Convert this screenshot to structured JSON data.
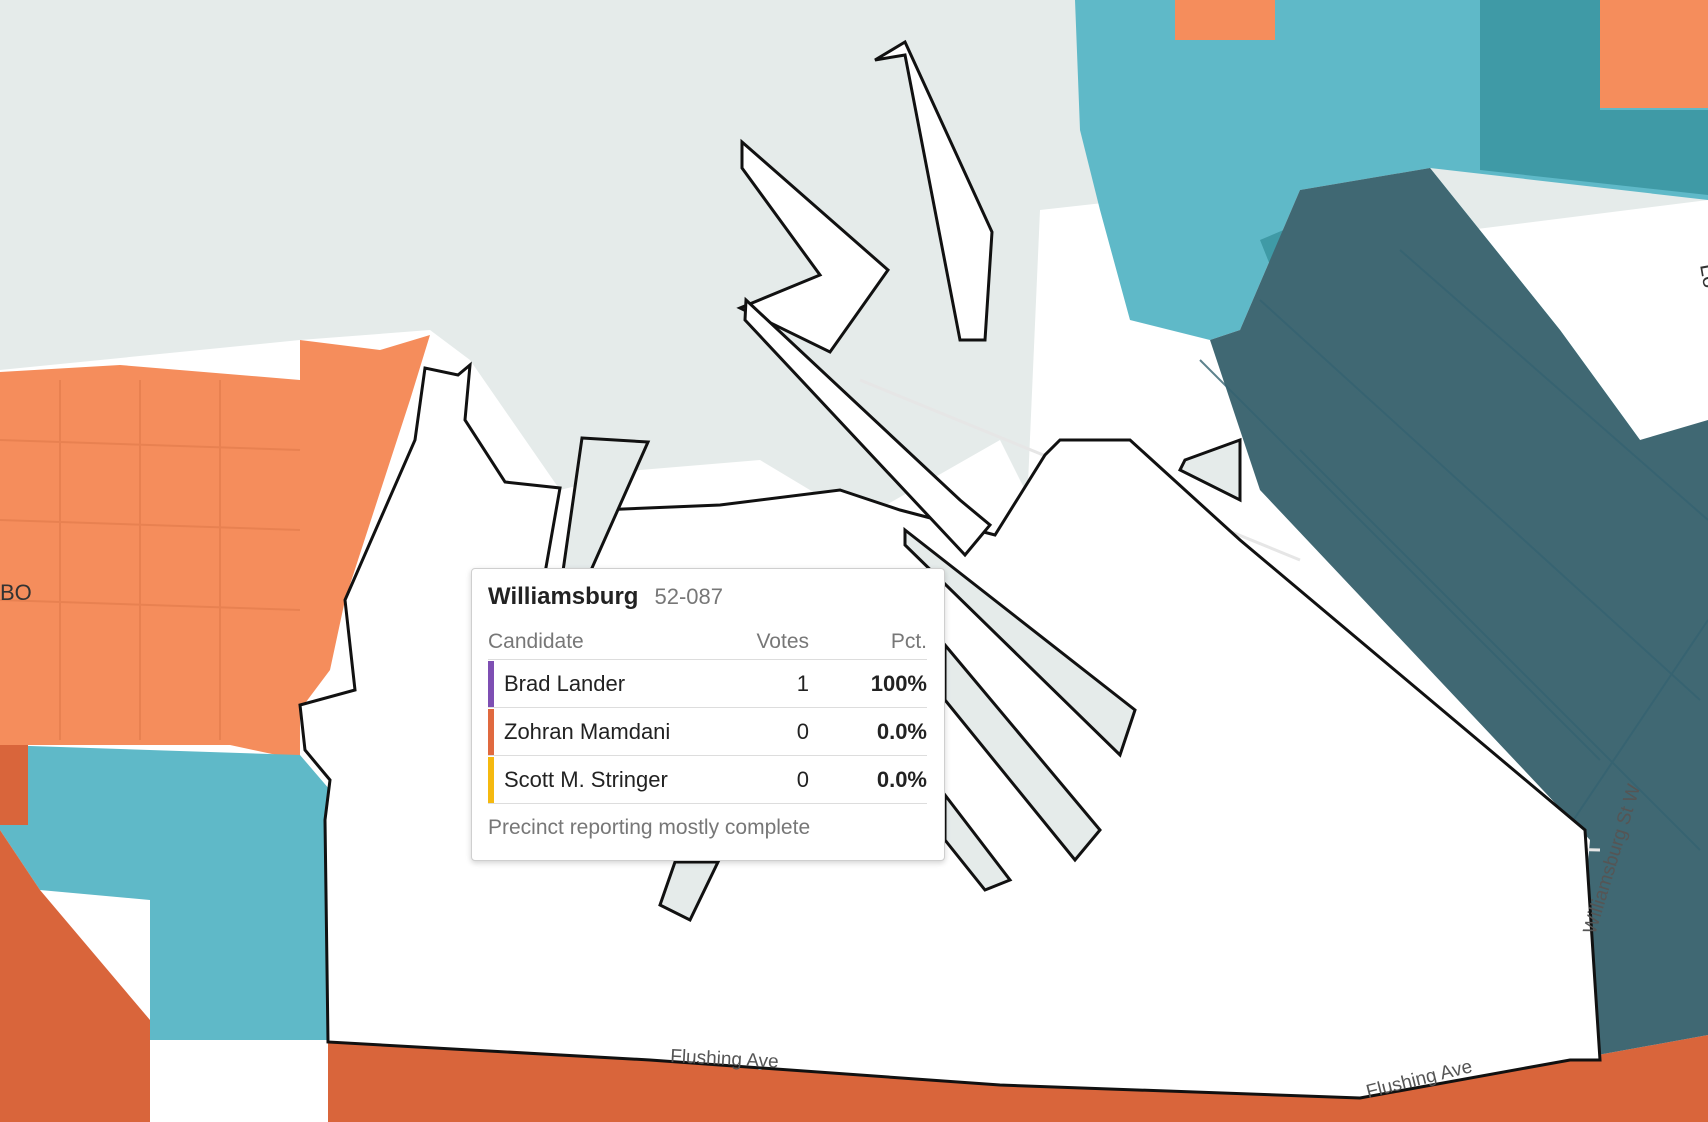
{
  "map": {
    "labels": {
      "flushing_ave_1": "Flushing Ave",
      "flushing_ave_2": "Flushing Ave",
      "williamsburg_st_w": "Williamsburg St W",
      "dumbo_fragment": "BO",
      "edge_fragment": "Lo"
    },
    "colors": {
      "water": "#e5ebea",
      "land": "#ffffff",
      "streets": "#e6e6e6",
      "mamdani_light": "#f58d5c",
      "mamdani_dark": "#d9653b",
      "lander_light": "#5fb9c8",
      "lander_mid": "#3f9aa6",
      "lander_dark": "#406873"
    }
  },
  "tooltip": {
    "title": "Williamsburg",
    "precinct": "52-087",
    "headers": {
      "candidate": "Candidate",
      "votes": "Votes",
      "pct": "Pct."
    },
    "rows": [
      {
        "name": "Brad Lander",
        "votes": "1",
        "pct": "100%",
        "color": "#7e4fb3"
      },
      {
        "name": "Zohran Mamdani",
        "votes": "0",
        "pct": "0.0%",
        "color": "#e0693f"
      },
      {
        "name": "Scott M. Stringer",
        "votes": "0",
        "pct": "0.0%",
        "color": "#f5b90f"
      }
    ],
    "footer": "Precinct reporting mostly complete"
  }
}
